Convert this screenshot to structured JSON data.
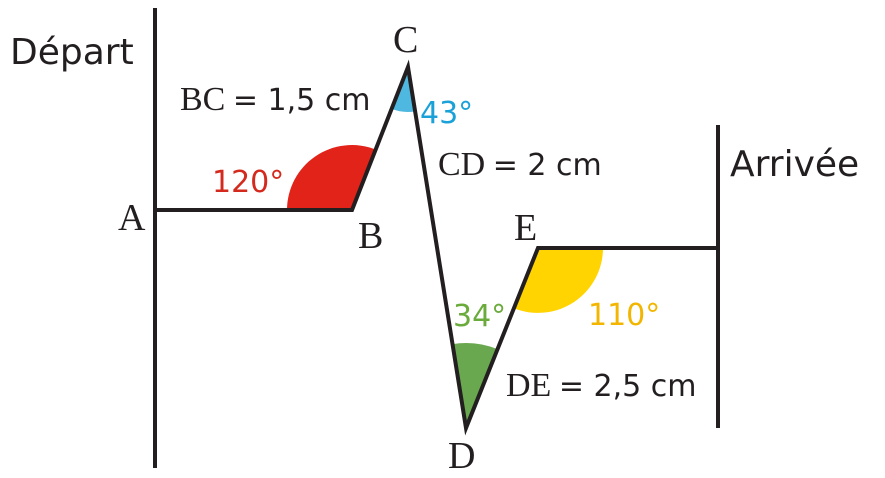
{
  "labels": {
    "start": "Départ",
    "finish": "Arrivée"
  },
  "points": {
    "A": "A",
    "B": "B",
    "C": "C",
    "D": "D",
    "E": "E"
  },
  "segments": [
    {
      "name": "BC",
      "length": "= 1,5 cm"
    },
    {
      "name": "CD",
      "length": "= 2 cm"
    },
    {
      "name": "DE",
      "length": "= 2,5 cm"
    }
  ],
  "angles": {
    "B": "120°",
    "C": "43°",
    "D": "34°",
    "E": "110°"
  }
}
